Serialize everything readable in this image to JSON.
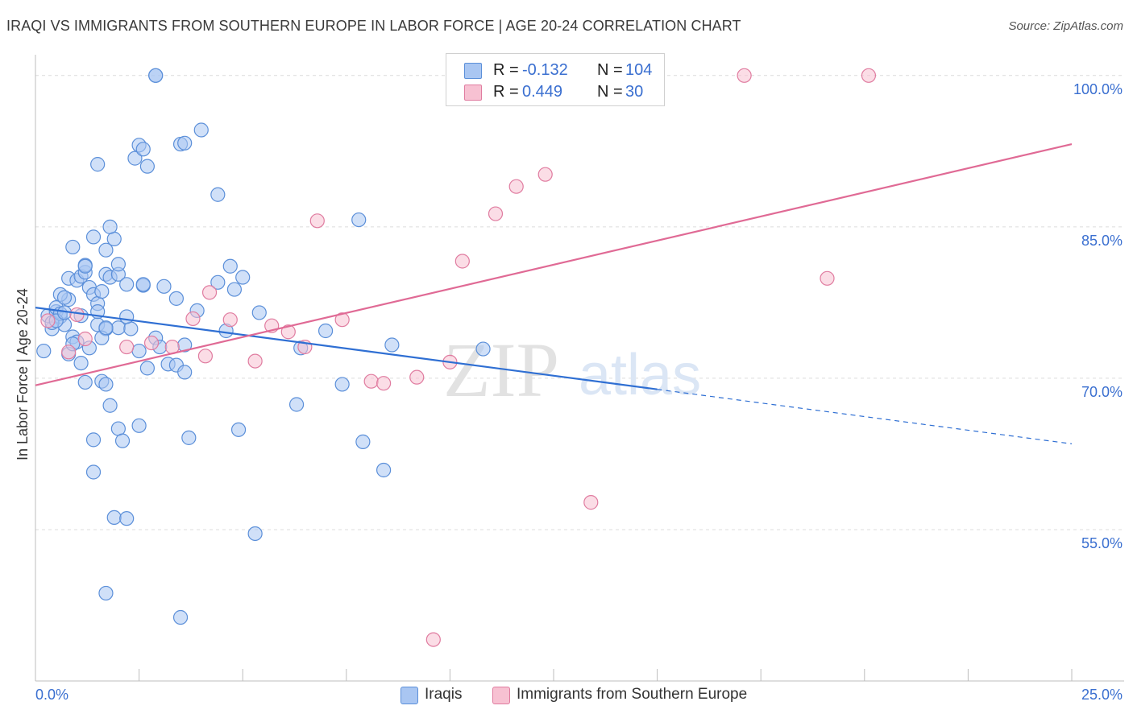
{
  "header": {
    "title": "IRAQI VS IMMIGRANTS FROM SOUTHERN EUROPE IN LABOR FORCE | AGE 20-24 CORRELATION CHART",
    "source": "Source: ZipAtlas.com"
  },
  "watermark": {
    "zip": "ZIP",
    "atlas": "atlas"
  },
  "stats": [
    {
      "r_label": "R =",
      "r_value": "-0.132",
      "n_label": "N =",
      "n_value": "104",
      "color": "#a9c6f2",
      "border": "#5b8fd9"
    },
    {
      "r_label": "R =",
      "r_value": "0.449",
      "n_label": "N =",
      "n_value": "30",
      "color": "#f7c1d2",
      "border": "#e07ca0"
    }
  ],
  "legend": {
    "iraqis": "Iraqis",
    "southern_europe": "Immigrants from Southern Europe"
  },
  "colors": {
    "blue_fill": "#a9c6f2",
    "blue_stroke": "#5b8fd9",
    "blue_line": "#2f6fd3",
    "pink_fill": "#f7c1d2",
    "pink_stroke": "#e07ca0",
    "pink_line": "#e06a95",
    "tick_text": "#3a6fd0"
  },
  "chart_data": {
    "type": "scatter",
    "title": "IRAQI VS IMMIGRANTS FROM SOUTHERN EUROPE IN LABOR FORCE | AGE 20-24 CORRELATION CHART",
    "xlabel": "",
    "ylabel": "In Labor Force | Age 20-24",
    "xlim": [
      0,
      25
    ],
    "ylim": [
      40,
      101.5
    ],
    "x_tick_labels": [
      "0.0%",
      "25.0%"
    ],
    "y_ticks": [
      100,
      85,
      70,
      55
    ],
    "y_tick_labels": [
      "100.0%",
      "85.0%",
      "70.0%",
      "55.0%"
    ],
    "grid": true,
    "legend_position": "bottom",
    "series": [
      {
        "name": "Iraqis",
        "points": [
          [
            0.3,
            76.2
          ],
          [
            0.4,
            74.9
          ],
          [
            0.6,
            76.1
          ],
          [
            0.2,
            72.7
          ],
          [
            0.5,
            76.6
          ],
          [
            0.7,
            75.3
          ],
          [
            0.9,
            74.1
          ],
          [
            0.5,
            77.0
          ],
          [
            0.8,
            77.8
          ],
          [
            0.6,
            78.3
          ],
          [
            0.7,
            78.0
          ],
          [
            0.8,
            79.9
          ],
          [
            1.0,
            79.7
          ],
          [
            1.1,
            80.1
          ],
          [
            1.2,
            80.5
          ],
          [
            1.3,
            79.0
          ],
          [
            1.4,
            78.3
          ],
          [
            1.5,
            77.4
          ],
          [
            1.6,
            78.6
          ],
          [
            1.7,
            80.3
          ],
          [
            1.8,
            80.0
          ],
          [
            2.0,
            80.3
          ],
          [
            2.2,
            79.3
          ],
          [
            1.2,
            81.2
          ],
          [
            1.2,
            81.1
          ],
          [
            1.7,
            82.7
          ],
          [
            0.9,
            83.0
          ],
          [
            1.9,
            83.8
          ],
          [
            2.0,
            81.3
          ],
          [
            1.4,
            84.0
          ],
          [
            1.8,
            85.0
          ],
          [
            1.5,
            91.2
          ],
          [
            2.4,
            91.8
          ],
          [
            2.5,
            93.1
          ],
          [
            2.6,
            92.7
          ],
          [
            2.7,
            91.0
          ],
          [
            2.9,
            100.0
          ],
          [
            3.5,
            93.2
          ],
          [
            3.6,
            93.3
          ],
          [
            4.0,
            94.6
          ],
          [
            4.4,
            88.2
          ],
          [
            2.6,
            79.2
          ],
          [
            2.6,
            79.3
          ],
          [
            2.9,
            74.0
          ],
          [
            2.5,
            72.7
          ],
          [
            3.2,
            71.4
          ],
          [
            3.4,
            71.3
          ],
          [
            3.6,
            70.6
          ],
          [
            3.1,
            79.1
          ],
          [
            3.9,
            76.7
          ],
          [
            4.7,
            81.1
          ],
          [
            4.8,
            78.8
          ],
          [
            4.4,
            79.5
          ],
          [
            5.0,
            80.0
          ],
          [
            4.6,
            74.7
          ],
          [
            3.0,
            73.1
          ],
          [
            2.7,
            71.0
          ],
          [
            2.0,
            75.0
          ],
          [
            2.3,
            74.9
          ],
          [
            1.1,
            71.5
          ],
          [
            1.5,
            75.3
          ],
          [
            1.7,
            74.9
          ],
          [
            1.6,
            74.0
          ],
          [
            1.7,
            75.0
          ],
          [
            1.2,
            69.6
          ],
          [
            1.6,
            69.7
          ],
          [
            1.7,
            69.4
          ],
          [
            1.8,
            67.3
          ],
          [
            2.0,
            65.0
          ],
          [
            2.1,
            63.8
          ],
          [
            2.5,
            65.3
          ],
          [
            1.4,
            63.9
          ],
          [
            1.4,
            60.7
          ],
          [
            1.9,
            56.2
          ],
          [
            2.2,
            56.1
          ],
          [
            1.7,
            48.7
          ],
          [
            3.5,
            46.3
          ],
          [
            3.7,
            64.1
          ],
          [
            4.9,
            64.9
          ],
          [
            5.4,
            76.5
          ],
          [
            5.3,
            54.6
          ],
          [
            6.3,
            67.4
          ],
          [
            6.4,
            73.0
          ],
          [
            7.0,
            74.7
          ],
          [
            7.4,
            69.4
          ],
          [
            7.8,
            85.7
          ],
          [
            7.9,
            63.7
          ],
          [
            8.4,
            60.9
          ],
          [
            8.6,
            73.3
          ],
          [
            10.8,
            72.9
          ],
          [
            2.9,
            100.0
          ],
          [
            3.4,
            77.9
          ],
          [
            3.6,
            73.3
          ],
          [
            0.4,
            75.5
          ],
          [
            0.8,
            72.4
          ],
          [
            1.0,
            73.6
          ],
          [
            0.6,
            76.4
          ],
          [
            1.3,
            73.0
          ],
          [
            0.5,
            75.7
          ],
          [
            0.7,
            76.5
          ],
          [
            1.1,
            76.2
          ],
          [
            0.9,
            73.4
          ],
          [
            1.5,
            76.6
          ],
          [
            2.2,
            76.1
          ]
        ]
      },
      {
        "name": "Immigrants from Southern Europe",
        "points": [
          [
            0.3,
            75.7
          ],
          [
            0.8,
            72.6
          ],
          [
            1.0,
            76.3
          ],
          [
            1.2,
            73.9
          ],
          [
            2.2,
            73.1
          ],
          [
            2.8,
            73.5
          ],
          [
            3.3,
            73.1
          ],
          [
            3.8,
            75.9
          ],
          [
            4.1,
            72.2
          ],
          [
            4.2,
            78.5
          ],
          [
            4.7,
            75.8
          ],
          [
            5.3,
            71.7
          ],
          [
            5.7,
            75.2
          ],
          [
            6.1,
            74.6
          ],
          [
            6.5,
            73.1
          ],
          [
            6.8,
            85.6
          ],
          [
            7.4,
            75.8
          ],
          [
            8.1,
            69.7
          ],
          [
            8.4,
            69.5
          ],
          [
            9.2,
            70.1
          ],
          [
            9.6,
            44.1
          ],
          [
            10.0,
            71.6
          ],
          [
            10.3,
            81.6
          ],
          [
            11.1,
            86.3
          ],
          [
            11.6,
            89.0
          ],
          [
            12.3,
            90.2
          ],
          [
            13.4,
            57.7
          ],
          [
            17.1,
            100.0
          ],
          [
            19.1,
            79.9
          ],
          [
            20.1,
            100.0
          ]
        ]
      }
    ],
    "trend_lines": [
      {
        "series": "Iraqis",
        "x_start": 0,
        "y_start": 77.0,
        "x_solid_end": 15.0,
        "x_end": 25.0,
        "y_end": 63.5
      },
      {
        "series": "Immigrants from Southern Europe",
        "x_start": 0,
        "y_start": 69.3,
        "x_end": 25.0,
        "y_end": 93.2
      }
    ]
  }
}
